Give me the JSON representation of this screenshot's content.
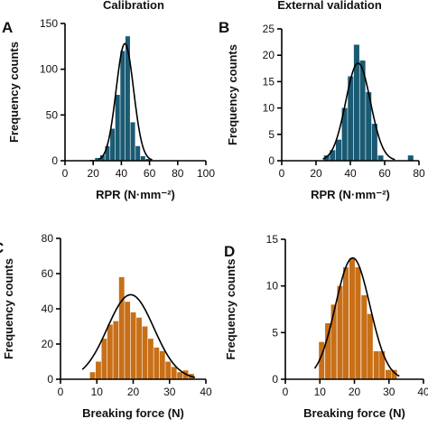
{
  "headers": {
    "calibration": "Calibration",
    "external_validation": "External validation"
  },
  "colors": {
    "teal": "#1a5a73",
    "orange": "#c86f17",
    "axis": "#000000",
    "curve": "#000000"
  },
  "chart_data": [
    {
      "panel": "A",
      "type": "bar",
      "xlabel": "RPR (N·mm⁻²)",
      "ylabel": "Frequency counts",
      "xlim": [
        0,
        100
      ],
      "ylim": [
        0,
        150
      ],
      "xticks": [
        0,
        20,
        40,
        60,
        80,
        100
      ],
      "yticks": [
        0,
        50,
        100,
        150
      ],
      "bin_width": 3.6,
      "bins": [
        {
          "x": 19.5,
          "y": 1
        },
        {
          "x": 23.1,
          "y": 3
        },
        {
          "x": 26.7,
          "y": 6
        },
        {
          "x": 30.3,
          "y": 16
        },
        {
          "x": 33.9,
          "y": 35
        },
        {
          "x": 37.5,
          "y": 72
        },
        {
          "x": 41.1,
          "y": 120
        },
        {
          "x": 44.7,
          "y": 136
        },
        {
          "x": 48.3,
          "y": 42
        },
        {
          "x": 51.9,
          "y": 16
        },
        {
          "x": 55.5,
          "y": 5
        },
        {
          "x": 59.1,
          "y": 2
        }
      ],
      "fit": {
        "mu": 42.5,
        "sigma": 6.2,
        "peak": 128,
        "x_range": [
          24,
          62
        ]
      }
    },
    {
      "panel": "B",
      "type": "bar",
      "xlabel": "RPR (N·mm⁻²)",
      "ylabel": "Frequency counts",
      "xlim": [
        0,
        80
      ],
      "ylim": [
        0,
        25
      ],
      "xticks": [
        0,
        20,
        40,
        60,
        80
      ],
      "yticks": [
        0,
        5,
        10,
        15,
        20,
        25
      ],
      "bin_width": 3.5,
      "bins": [
        {
          "x": 26.3,
          "y": 1
        },
        {
          "x": 29.8,
          "y": 2
        },
        {
          "x": 33.3,
          "y": 4
        },
        {
          "x": 36.8,
          "y": 10
        },
        {
          "x": 40.3,
          "y": 16
        },
        {
          "x": 43.8,
          "y": 22
        },
        {
          "x": 47.3,
          "y": 19
        },
        {
          "x": 50.8,
          "y": 13
        },
        {
          "x": 54.3,
          "y": 7
        },
        {
          "x": 57.8,
          "y": 1
        },
        {
          "x": 75.3,
          "y": 1
        }
      ],
      "fit": {
        "mu": 44.5,
        "sigma": 7.2,
        "peak": 18.5,
        "x_range": [
          24,
          66
        ]
      }
    },
    {
      "panel": "C",
      "type": "bar",
      "xlabel": "Breaking force (N)",
      "ylabel": "Frequency counts",
      "xlim": [
        0,
        40
      ],
      "ylim": [
        0,
        80
      ],
      "xticks": [
        0,
        10,
        20,
        30,
        40
      ],
      "yticks": [
        0,
        20,
        40,
        60,
        80
      ],
      "bin_width": 1.6,
      "bins": [
        {
          "x": 8.9,
          "y": 4
        },
        {
          "x": 10.5,
          "y": 10
        },
        {
          "x": 12.1,
          "y": 23
        },
        {
          "x": 13.7,
          "y": 31
        },
        {
          "x": 15.3,
          "y": 33
        },
        {
          "x": 16.9,
          "y": 58
        },
        {
          "x": 18.5,
          "y": 44
        },
        {
          "x": 20.1,
          "y": 38
        },
        {
          "x": 21.7,
          "y": 35
        },
        {
          "x": 23.3,
          "y": 30
        },
        {
          "x": 24.9,
          "y": 23
        },
        {
          "x": 26.5,
          "y": 18
        },
        {
          "x": 28.1,
          "y": 16
        },
        {
          "x": 29.7,
          "y": 10
        },
        {
          "x": 31.3,
          "y": 7
        },
        {
          "x": 32.9,
          "y": 4
        },
        {
          "x": 34.5,
          "y": 5
        },
        {
          "x": 36.1,
          "y": 3
        }
      ],
      "fit": {
        "mu": 19.3,
        "sigma": 6.4,
        "peak": 48,
        "x_range": [
          6,
          37
        ]
      }
    },
    {
      "panel": "D",
      "type": "bar",
      "xlabel": "Breaking force (N)",
      "ylabel": "Frequency counts",
      "xlim": [
        0,
        40
      ],
      "ylim": [
        0,
        15
      ],
      "xticks": [
        0,
        10,
        20,
        30,
        40
      ],
      "yticks": [
        0,
        5,
        10,
        15
      ],
      "bin_width": 1.75,
      "bins": [
        {
          "x": 10.6,
          "y": 4
        },
        {
          "x": 12.4,
          "y": 6
        },
        {
          "x": 14.1,
          "y": 8
        },
        {
          "x": 15.9,
          "y": 10
        },
        {
          "x": 17.6,
          "y": 12
        },
        {
          "x": 19.4,
          "y": 13
        },
        {
          "x": 21.1,
          "y": 12
        },
        {
          "x": 22.9,
          "y": 9
        },
        {
          "x": 24.6,
          "y": 7
        },
        {
          "x": 26.4,
          "y": 3
        },
        {
          "x": 28.1,
          "y": 3
        },
        {
          "x": 29.9,
          "y": 1
        },
        {
          "x": 31.6,
          "y": 1
        }
      ],
      "fit": {
        "mu": 19.5,
        "sigma": 5.0,
        "peak": 13,
        "x_range": [
          8.5,
          33
        ]
      }
    }
  ]
}
